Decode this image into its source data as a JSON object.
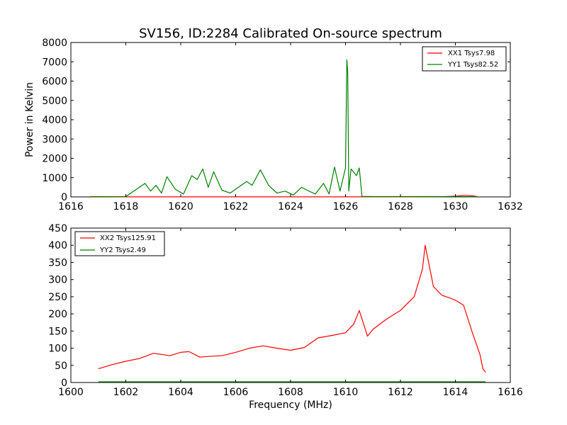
{
  "title": "SV156, ID:2284 Calibrated On-source spectrum",
  "chart_data": [
    {
      "type": "line",
      "ylabel": "Power in Kelvin",
      "xlabel": "",
      "xlim": [
        1616,
        1632
      ],
      "ylim": [
        0,
        8000
      ],
      "xticks": [
        1616,
        1618,
        1620,
        1622,
        1624,
        1626,
        1628,
        1630,
        1632
      ],
      "yticks": [
        0,
        1000,
        2000,
        3000,
        4000,
        5000,
        6000,
        7000,
        8000
      ],
      "grid": false,
      "legend_position": "top-right",
      "series": [
        {
          "name": "XX1 Tsys7.98",
          "color": "#ff0000",
          "x": [
            1616.7,
            1618.0,
            1620.0,
            1622.0,
            1624.0,
            1626.0,
            1628.0,
            1629.5,
            1630.0,
            1630.3,
            1630.6,
            1630.8
          ],
          "y": [
            0,
            5,
            5,
            5,
            5,
            5,
            5,
            10,
            40,
            80,
            60,
            20
          ]
        },
        {
          "name": "YY1 Tsys82.52",
          "color": "#008000",
          "x": [
            1616.7,
            1618.0,
            1618.7,
            1618.9,
            1619.1,
            1619.3,
            1619.5,
            1619.8,
            1620.1,
            1620.4,
            1620.6,
            1620.8,
            1621.0,
            1621.2,
            1621.5,
            1621.8,
            1622.1,
            1622.4,
            1622.6,
            1622.9,
            1623.2,
            1623.5,
            1623.8,
            1624.1,
            1624.4,
            1624.6,
            1624.9,
            1625.2,
            1625.4,
            1625.6,
            1625.8,
            1626.0,
            1626.05,
            1626.08,
            1626.12,
            1626.2,
            1626.4,
            1626.5,
            1626.6,
            1627.0,
            1628.0,
            1630.0,
            1630.8
          ],
          "y": [
            15,
            20,
            700,
            300,
            600,
            200,
            1050,
            400,
            150,
            1100,
            900,
            1450,
            500,
            1300,
            350,
            200,
            500,
            800,
            600,
            1400,
            600,
            200,
            300,
            100,
            500,
            350,
            150,
            700,
            150,
            1550,
            300,
            1500,
            7100,
            6500,
            300,
            1450,
            1100,
            1500,
            30,
            20,
            20,
            20,
            10
          ]
        }
      ]
    },
    {
      "type": "line",
      "ylabel": "",
      "xlabel": "Frequency (MHz)",
      "xlim": [
        1600,
        1616
      ],
      "ylim": [
        0,
        450
      ],
      "xticks": [
        1600,
        1602,
        1604,
        1606,
        1608,
        1610,
        1612,
        1614,
        1616
      ],
      "yticks": [
        0,
        50,
        100,
        150,
        200,
        250,
        300,
        350,
        400,
        450
      ],
      "grid": false,
      "legend_position": "top-left",
      "series": [
        {
          "name": "XX2 Tsys125.91",
          "color": "#ff0000",
          "x": [
            1601.0,
            1601.5,
            1602.0,
            1602.5,
            1603.0,
            1603.3,
            1603.6,
            1604.0,
            1604.3,
            1604.7,
            1605.0,
            1605.5,
            1606.0,
            1606.5,
            1607.0,
            1607.5,
            1608.0,
            1608.5,
            1609.0,
            1609.5,
            1610.0,
            1610.3,
            1610.5,
            1610.8,
            1611.0,
            1611.5,
            1612.0,
            1612.5,
            1612.8,
            1612.9,
            1613.2,
            1613.5,
            1614.0,
            1614.3,
            1614.6,
            1614.9,
            1615.0,
            1615.1
          ],
          "y": [
            40,
            52,
            62,
            70,
            85,
            82,
            78,
            88,
            90,
            74,
            76,
            78,
            88,
            100,
            107,
            100,
            94,
            102,
            130,
            137,
            145,
            170,
            210,
            135,
            155,
            185,
            210,
            250,
            330,
            400,
            280,
            255,
            240,
            225,
            150,
            80,
            40,
            30
          ]
        },
        {
          "name": "YY2 Tsys2.49",
          "color": "#008000",
          "x": [
            1601.0,
            1603.0,
            1606.0,
            1609.0,
            1612.0,
            1615.1
          ],
          "y": [
            2,
            2,
            2,
            2,
            2,
            2
          ]
        }
      ]
    }
  ]
}
